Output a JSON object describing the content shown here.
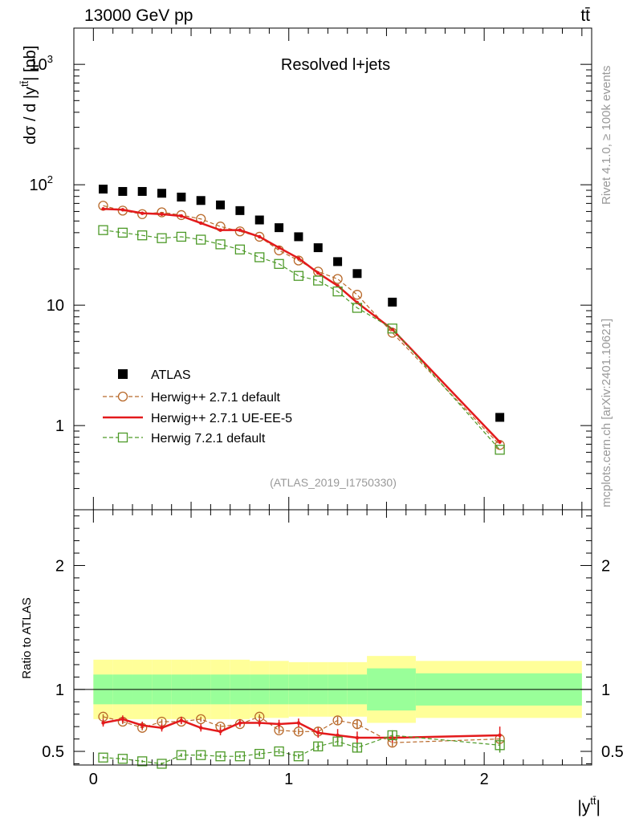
{
  "header": {
    "energy_label": "13000 GeV pp",
    "process_label": "tt̄",
    "side_rivet": "Rivet 4.1.0, ≥ 100k events",
    "side_mcplots": "mcplots.cern.ch [arXiv:2401.10621]",
    "analysis_id": "(ATLAS_2019_I1750330)"
  },
  "chart_data": [
    {
      "type": "scatter",
      "title": "Resolved l+jets",
      "ylabel": "dσ / d |y",
      "ylabel_sup": "tt̄",
      "ylabel_unit": "| [pb]",
      "xlabel": "|y",
      "xlabel_sup": "tt̄",
      "xlabel_end": "|",
      "yscale": "log",
      "xlim": [
        -0.1,
        2.55
      ],
      "ylim": [
        0.2,
        2000
      ],
      "y_tick_labels": [
        {
          "value": 1,
          "base": "1",
          "exp": ""
        },
        {
          "value": 10,
          "base": "10",
          "exp": ""
        },
        {
          "value": 100,
          "base": "10",
          "exp": "2"
        },
        {
          "value": 1000,
          "base": "10",
          "exp": "3"
        }
      ],
      "x": [
        0.05,
        0.15,
        0.25,
        0.35,
        0.45,
        0.55,
        0.65,
        0.75,
        0.85,
        0.95,
        1.05,
        1.15,
        1.25,
        1.35,
        1.53,
        2.08
      ],
      "series": [
        {
          "name": "ATLAS",
          "color": "#000000",
          "marker": "filled-square",
          "values": [
            92,
            88,
            88,
            85,
            79,
            74,
            68,
            61,
            51,
            44,
            37,
            30,
            23,
            18.3,
            10.6,
            1.17
          ]
        },
        {
          "name": "Herwig++ 2.7.1 default",
          "color": "#b8692a",
          "marker": "open-circle",
          "dash": true,
          "values": [
            67,
            61,
            57,
            59,
            56,
            52,
            45,
            41,
            37,
            28.5,
            23.5,
            19,
            16.5,
            12.2,
            5.9,
            0.69
          ]
        },
        {
          "name": "Herwig++ 2.7.1 UE-EE-5",
          "color": "#e31a1c",
          "marker": "line",
          "values": [
            63,
            62,
            58,
            57,
            55,
            48,
            42,
            42,
            37,
            30,
            24.5,
            18.5,
            14.5,
            10.5,
            6.3,
            0.73
          ]
        },
        {
          "name": "Herwig 7.2.1 default",
          "color": "#4d9a28",
          "marker": "open-square",
          "dash": true,
          "values": [
            42,
            40,
            38,
            36,
            37,
            35,
            32,
            29,
            25,
            22,
            17.5,
            16,
            13,
            9.5,
            6.4,
            0.63
          ]
        }
      ]
    },
    {
      "type": "scatter",
      "title": "",
      "ylabel": "Ratio to ATLAS",
      "xlim": [
        -0.1,
        2.55
      ],
      "ylim": [
        0.39,
        2.45
      ],
      "y_tick_labels": [
        {
          "value": 0.5,
          "label": "0.5"
        },
        {
          "value": 1,
          "label": "1"
        },
        {
          "value": 2,
          "label": "2"
        }
      ],
      "x_tick_labels": [
        {
          "value": 0,
          "label": "0"
        },
        {
          "value": 1,
          "label": "1"
        },
        {
          "value": 2,
          "label": "2"
        }
      ],
      "bin_edges": [
        0,
        0.1,
        0.2,
        0.3,
        0.4,
        0.5,
        0.6,
        0.7,
        0.8,
        0.9,
        1.0,
        1.1,
        1.2,
        1.3,
        1.4,
        1.65,
        2.5
      ],
      "stat_band": [
        0.12,
        0.12,
        0.12,
        0.12,
        0.12,
        0.12,
        0.12,
        0.12,
        0.12,
        0.12,
        0.12,
        0.12,
        0.12,
        0.12,
        0.17,
        0.13
      ],
      "total_band": [
        0.24,
        0.24,
        0.24,
        0.24,
        0.24,
        0.24,
        0.24,
        0.24,
        0.23,
        0.23,
        0.22,
        0.22,
        0.22,
        0.22,
        0.27,
        0.23
      ],
      "x": [
        0.05,
        0.15,
        0.25,
        0.35,
        0.45,
        0.55,
        0.65,
        0.75,
        0.85,
        0.95,
        1.05,
        1.15,
        1.25,
        1.35,
        1.53,
        2.08
      ],
      "series": [
        {
          "name": "Herwig++ 2.7.1 default",
          "color": "#b8692a",
          "marker": "open-circle",
          "dash": true,
          "values": [
            0.78,
            0.74,
            0.69,
            0.74,
            0.74,
            0.76,
            0.7,
            0.72,
            0.78,
            0.67,
            0.66,
            0.66,
            0.75,
            0.72,
            0.57,
            0.6
          ],
          "errors": [
            0.02,
            0.02,
            0.02,
            0.02,
            0.02,
            0.02,
            0.02,
            0.02,
            0.02,
            0.025,
            0.025,
            0.03,
            0.03,
            0.04,
            0.03,
            0.05
          ]
        },
        {
          "name": "Herwig++ 2.7.1 UE-EE-5",
          "color": "#e31a1c",
          "marker": "line",
          "values": [
            0.73,
            0.76,
            0.71,
            0.69,
            0.75,
            0.69,
            0.66,
            0.73,
            0.73,
            0.72,
            0.73,
            0.65,
            0.63,
            0.61,
            0.61,
            0.63
          ],
          "errors": [
            0.03,
            0.03,
            0.03,
            0.03,
            0.03,
            0.03,
            0.03,
            0.03,
            0.03,
            0.035,
            0.035,
            0.04,
            0.05,
            0.05,
            0.04,
            0.07
          ]
        },
        {
          "name": "Herwig 7.2.1 default",
          "color": "#4d9a28",
          "marker": "open-square",
          "dash": true,
          "values": [
            0.45,
            0.44,
            0.42,
            0.4,
            0.47,
            0.47,
            0.46,
            0.46,
            0.48,
            0.5,
            0.46,
            0.54,
            0.58,
            0.53,
            0.63,
            0.55
          ],
          "errors": [
            0.01,
            0.01,
            0.01,
            0.01,
            0.015,
            0.015,
            0.015,
            0.015,
            0.02,
            0.02,
            0.02,
            0.03,
            0.03,
            0.04,
            0.04,
            0.06
          ]
        }
      ]
    }
  ]
}
